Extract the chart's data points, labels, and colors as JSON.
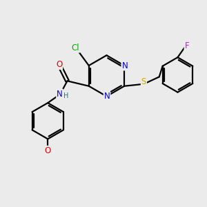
{
  "background_color": "#ebebeb",
  "atom_colors": {
    "C": "#000000",
    "N": "#0000cc",
    "O": "#dd0000",
    "S": "#ccaa00",
    "Cl": "#00aa00",
    "F": "#ee00ee",
    "H": "#008080"
  },
  "bond_color": "#000000",
  "figsize": [
    3.0,
    3.0
  ],
  "dpi": 100
}
